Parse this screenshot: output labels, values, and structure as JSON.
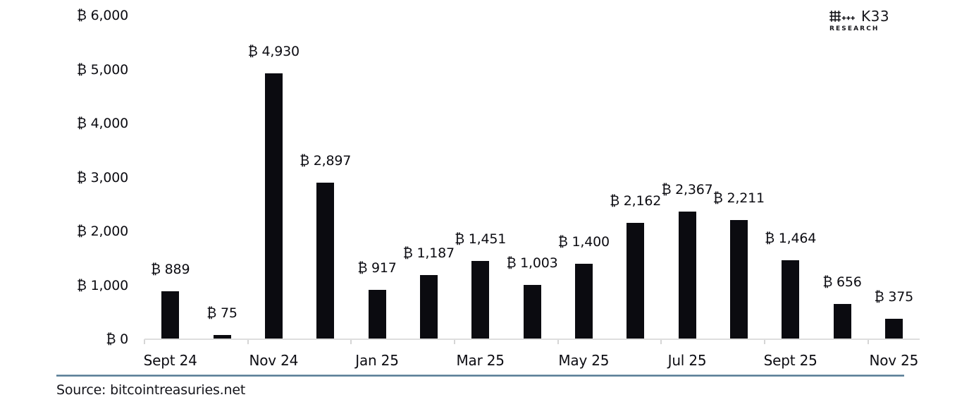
{
  "header": {
    "logo": {
      "brand": "K33",
      "division": "RESEARCH",
      "mark_icon": "plus-dot-matrix"
    }
  },
  "chart_data": {
    "type": "bar",
    "title": "",
    "unit": "₿",
    "values": [
      889,
      75,
      4930,
      2897,
      917,
      1187,
      1451,
      1003,
      1400,
      2162,
      2367,
      2211,
      1464,
      656,
      375
    ],
    "bar_labels": [
      "₿ 889",
      "₿ 75",
      "₿ 4,930",
      "₿ 2,897",
      "₿ 917",
      "₿ 1,187",
      "₿ 1,451",
      "₿ 1,003",
      "₿ 1,400",
      "₿ 2,162",
      "₿ 2,367",
      "₿ 2,211",
      "₿ 1,464",
      "₿ 656",
      "₿ 375"
    ],
    "x_axis": {
      "tick_labels": [
        "Sept 24",
        "Nov 24",
        "Jan 25",
        "Mar 25",
        "May 25",
        "Jul 25",
        "Sept 25",
        "Nov 25"
      ],
      "label_at_bar_indices": [
        0,
        2,
        4,
        6,
        8,
        10,
        12,
        14
      ],
      "boundary_ticks_every_n_bars": 2
    },
    "y_axis": {
      "tick_values": [
        0,
        1000,
        2000,
        3000,
        4000,
        5000,
        6000
      ],
      "tick_labels": [
        "₿ 0",
        "₿ 1,000",
        "₿ 2,000",
        "₿ 3,000",
        "₿ 4,000",
        "₿ 5,000",
        "₿ 6,000"
      ],
      "min": 0,
      "max": 6000
    },
    "grid": false,
    "legend": false,
    "colors": {
      "bar": "#0b0b10",
      "axis_line": "#dedede",
      "text": "#0c0c12"
    }
  },
  "footer": {
    "source": "Source: bitcointreasuries.net",
    "divider_color": "#4e7490"
  }
}
